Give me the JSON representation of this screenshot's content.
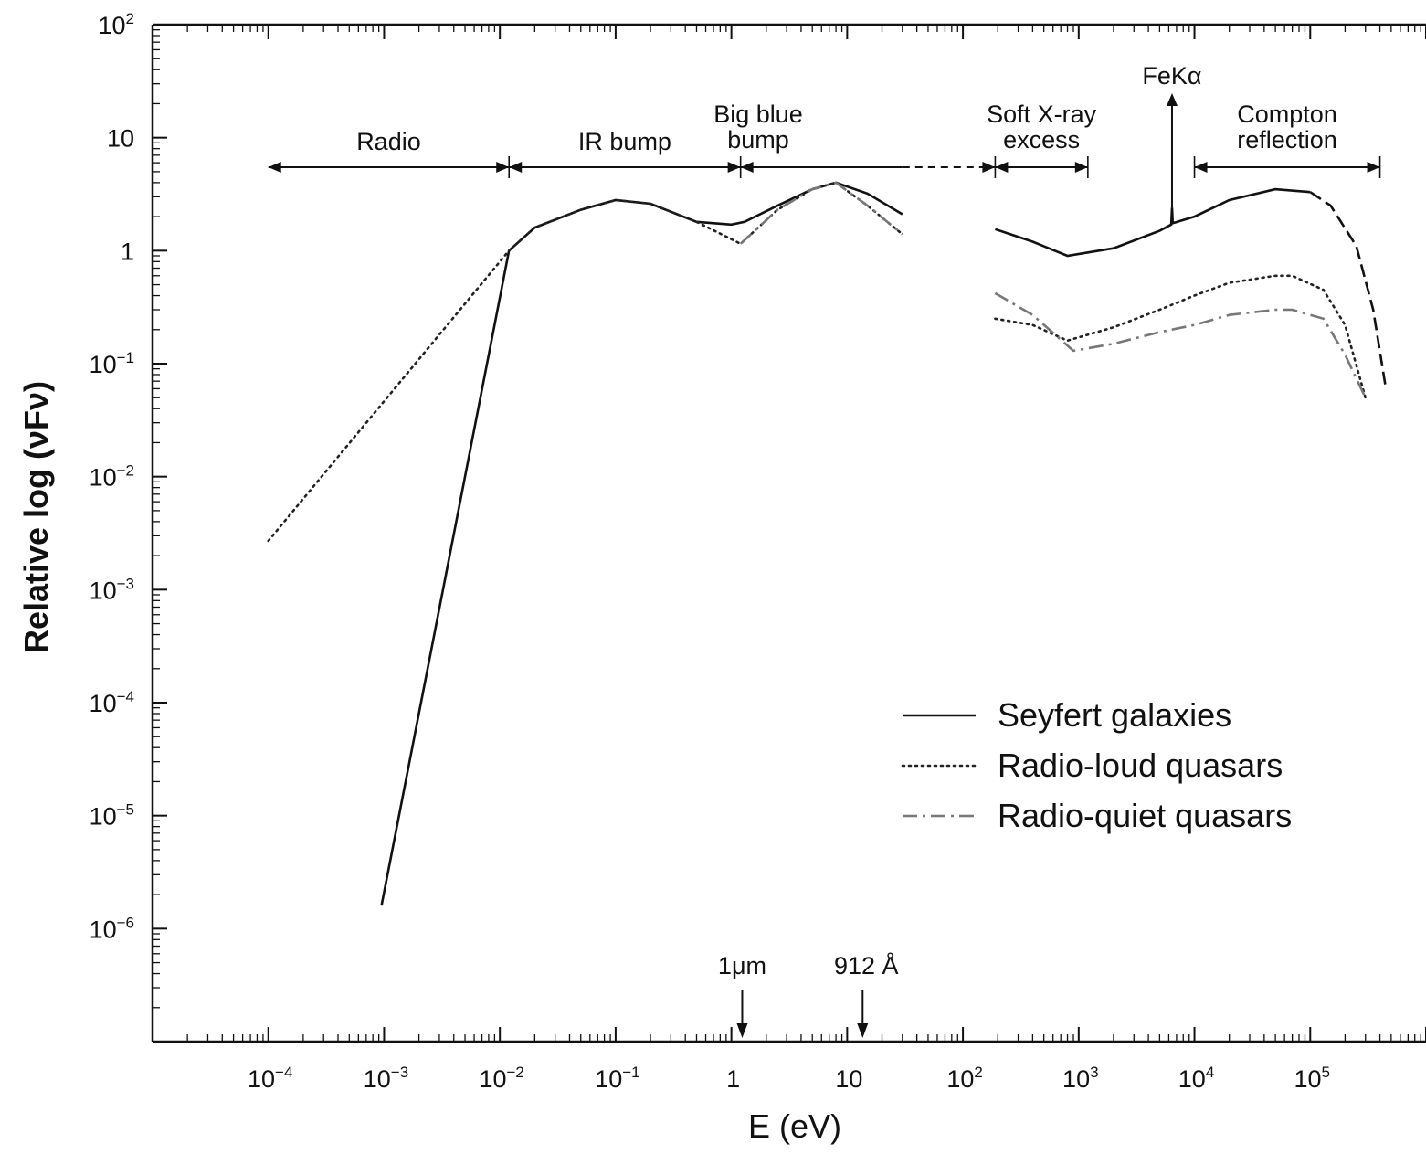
{
  "chart_data": {
    "type": "line",
    "xlabel": "E (eV)",
    "ylabel": "Relative log (νFν)",
    "xscale": "log",
    "yscale": "log",
    "xlim": [
      1e-05,
      1000000.0
    ],
    "ylim": [
      1e-07,
      100
    ],
    "x_ticks": [
      {
        "value": 0.0001,
        "base": "10",
        "exp": "−4"
      },
      {
        "value": 0.001,
        "base": "10",
        "exp": "−3"
      },
      {
        "value": 0.01,
        "base": "10",
        "exp": "−2"
      },
      {
        "value": 0.1,
        "base": "10",
        "exp": "−1"
      },
      {
        "value": 1,
        "base": "1",
        "exp": ""
      },
      {
        "value": 10,
        "base": "10",
        "exp": ""
      },
      {
        "value": 100,
        "base": "10",
        "exp": "2"
      },
      {
        "value": 1000,
        "base": "10",
        "exp": "3"
      },
      {
        "value": 10000,
        "base": "10",
        "exp": "4"
      },
      {
        "value": 100000,
        "base": "10",
        "exp": "5"
      }
    ],
    "y_ticks": [
      {
        "value": 100,
        "base": "10",
        "exp": "2"
      },
      {
        "value": 10,
        "base": "10",
        "exp": ""
      },
      {
        "value": 1,
        "base": "1",
        "exp": ""
      },
      {
        "value": 0.1,
        "base": "10",
        "exp": "−1"
      },
      {
        "value": 0.01,
        "base": "10",
        "exp": "−2"
      },
      {
        "value": 0.001,
        "base": "10",
        "exp": "−3"
      },
      {
        "value": 0.0001,
        "base": "10",
        "exp": "−4"
      },
      {
        "value": 1e-05,
        "base": "10",
        "exp": "−5"
      },
      {
        "value": 1e-06,
        "base": "10",
        "exp": "−6"
      }
    ],
    "series": [
      {
        "name": "Seyfert galaxies",
        "style": "solid",
        "segments": [
          {
            "x": [
              0.00095,
              0.012,
              0.02,
              0.05,
              0.1,
              0.2,
              0.5,
              1.0,
              1.3,
              2.5,
              5,
              8,
              15,
              30
            ],
            "y": [
              1.6e-06,
              1.0,
              1.6,
              2.3,
              2.8,
              2.6,
              1.8,
              1.7,
              1.8,
              2.5,
              3.5,
              4.0,
              3.2,
              2.1
            ]
          },
          {
            "x": [
              190,
              400,
              800,
              2000,
              5000,
              6300,
              6400,
              6500,
              10000,
              20000,
              50000,
              100000
            ],
            "y": [
              1.55,
              1.2,
              0.9,
              1.05,
              1.5,
              1.7,
              2.4,
              1.75,
              2.0,
              2.8,
              3.5,
              3.3
            ]
          }
        ]
      },
      {
        "name": "Radio-loud quasars",
        "style": "dotted",
        "segments": [
          {
            "x": [
              0.0001,
              0.012,
              0.02,
              0.05,
              0.1,
              0.2,
              0.5,
              1.2,
              2.5,
              5,
              8,
              15,
              30
            ],
            "y": [
              0.0027,
              1.0,
              1.6,
              2.3,
              2.8,
              2.6,
              1.8,
              1.15,
              2.3,
              3.5,
              4.0,
              2.5,
              1.4
            ]
          },
          {
            "x": [
              190,
              400,
              800,
              2000,
              5000,
              10000,
              20000,
              50000,
              70000,
              130000,
              200000,
              300000
            ],
            "y": [
              0.25,
              0.22,
              0.16,
              0.21,
              0.3,
              0.4,
              0.52,
              0.6,
              0.6,
              0.45,
              0.22,
              0.05
            ]
          }
        ]
      },
      {
        "name": "Radio-quiet quasars",
        "style": "dash-dot",
        "segments": [
          {
            "x": [
              1.2,
              2.5,
              5,
              8,
              15,
              30
            ],
            "y": [
              1.15,
              2.3,
              3.5,
              4.0,
              2.5,
              1.4
            ]
          },
          {
            "x": [
              190,
              400,
              900,
              2000,
              5000,
              10000,
              20000,
              50000,
              70000,
              130000,
              200000,
              300000
            ],
            "y": [
              0.42,
              0.27,
              0.13,
              0.15,
              0.19,
              0.22,
              0.27,
              0.3,
              0.3,
              0.25,
              0.12,
              0.05
            ]
          }
        ]
      }
    ],
    "seyfert_tail": {
      "x": [
        100000,
        150000,
        250000,
        350000,
        450000
      ],
      "y": [
        3.3,
        2.5,
        1.1,
        0.3,
        0.06
      ]
    },
    "regions": [
      {
        "label_lines": [
          "Radio"
        ],
        "x_from": 0.0001,
        "x_to": 0.012
      },
      {
        "label_lines": [
          "IR bump"
        ],
        "x_from": 0.012,
        "x_to": 1.2
      },
      {
        "label_lines": [
          "Big blue",
          "bump"
        ],
        "x_from": 1.2,
        "x_to": 190
      },
      {
        "label_lines": [
          "Soft X-ray",
          "excess"
        ],
        "x_from": 190,
        "x_to": 1200
      },
      {
        "label_lines": [
          "Compton",
          "reflection"
        ],
        "x_from": 10000,
        "x_to": 400000
      }
    ],
    "annotations": [
      {
        "text": "FeKα",
        "x": 6400
      },
      {
        "text": "1μm",
        "x": 1.24
      },
      {
        "text": "912 Å",
        "x": 13.6
      }
    ],
    "legend": {
      "position": "lower-right",
      "entries": [
        {
          "label": "Seyfert galaxies",
          "style": "solid"
        },
        {
          "label": "Radio-loud quasars",
          "style": "dotted"
        },
        {
          "label": "Radio-quiet quasars",
          "style": "dash-dot"
        }
      ]
    },
    "grid": false
  }
}
